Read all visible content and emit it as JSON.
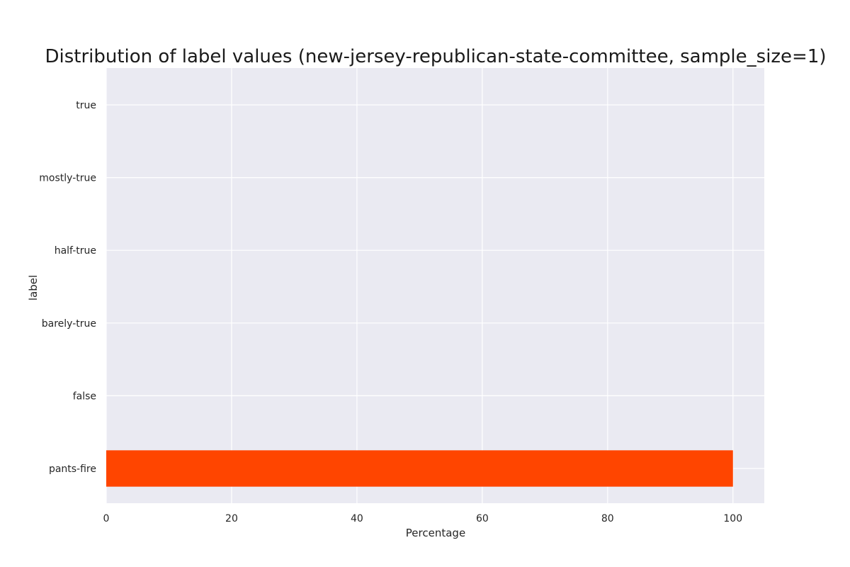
{
  "chart_data": {
    "type": "bar",
    "orientation": "horizontal",
    "title": "Distribution of label values (new-jersey-republican-state-committee, sample_size=1)",
    "xlabel": "Percentage",
    "ylabel": "label",
    "categories": [
      "pants-fire",
      "false",
      "barely-true",
      "half-true",
      "mostly-true",
      "true"
    ],
    "values": [
      100,
      0,
      0,
      0,
      0,
      0
    ],
    "xlim": [
      0,
      105
    ],
    "xticks": [
      0,
      20,
      40,
      60,
      80,
      100
    ],
    "grid": true,
    "colors": {
      "bar": "#ff4500",
      "plot_background": "#eaeaf2",
      "grid": "#ffffff"
    }
  }
}
